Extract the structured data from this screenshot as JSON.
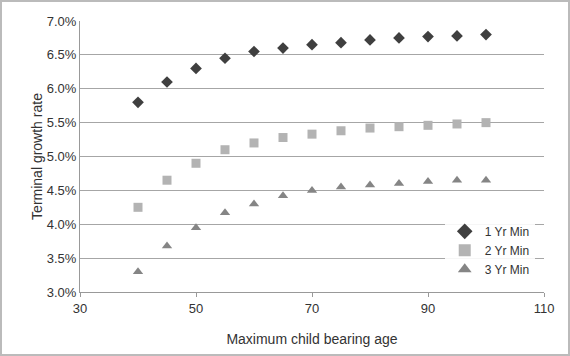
{
  "chart_data": {
    "type": "scatter",
    "x_label": "Maximum child bearing age",
    "y_label": "Terminal growth rate",
    "x": [
      40,
      45,
      50,
      55,
      60,
      65,
      70,
      75,
      80,
      85,
      90,
      95,
      100
    ],
    "series": [
      {
        "name": "1 Yr Min",
        "color": "#3f3f3f",
        "marker": "diamond",
        "values": [
          5.8,
          6.1,
          6.3,
          6.45,
          6.55,
          6.6,
          6.65,
          6.68,
          6.72,
          6.75,
          6.77,
          6.78,
          6.8
        ]
      },
      {
        "name": "2 Yr Min",
        "color": "#b3b3b3",
        "marker": "square",
        "values": [
          4.25,
          4.65,
          4.9,
          5.1,
          5.2,
          5.28,
          5.33,
          5.38,
          5.42,
          5.44,
          5.46,
          5.48,
          5.5
        ]
      },
      {
        "name": "3 Yr Min",
        "color": "#858585",
        "marker": "triangle",
        "values": [
          3.3,
          3.68,
          3.95,
          4.17,
          4.3,
          4.42,
          4.5,
          4.55,
          4.58,
          4.6,
          4.63,
          4.65,
          4.65
        ]
      }
    ],
    "xlim": [
      30,
      110
    ],
    "xticks": [
      30,
      50,
      70,
      90,
      110
    ],
    "ylim": [
      3.0,
      7.0
    ],
    "yticks": [
      {
        "value": 3.0,
        "label": "3.0%"
      },
      {
        "value": 3.5,
        "label": "3.5%"
      },
      {
        "value": 4.0,
        "label": "4.0%"
      },
      {
        "value": 4.5,
        "label": "4.5%"
      },
      {
        "value": 5.0,
        "label": "5.0%"
      },
      {
        "value": 5.5,
        "label": "5.5%"
      },
      {
        "value": 6.0,
        "label": "6.0%"
      },
      {
        "value": 6.5,
        "label": "6.5%"
      },
      {
        "value": 7.0,
        "label": "7.0%"
      }
    ],
    "grid": true,
    "legend": "bottom right"
  }
}
